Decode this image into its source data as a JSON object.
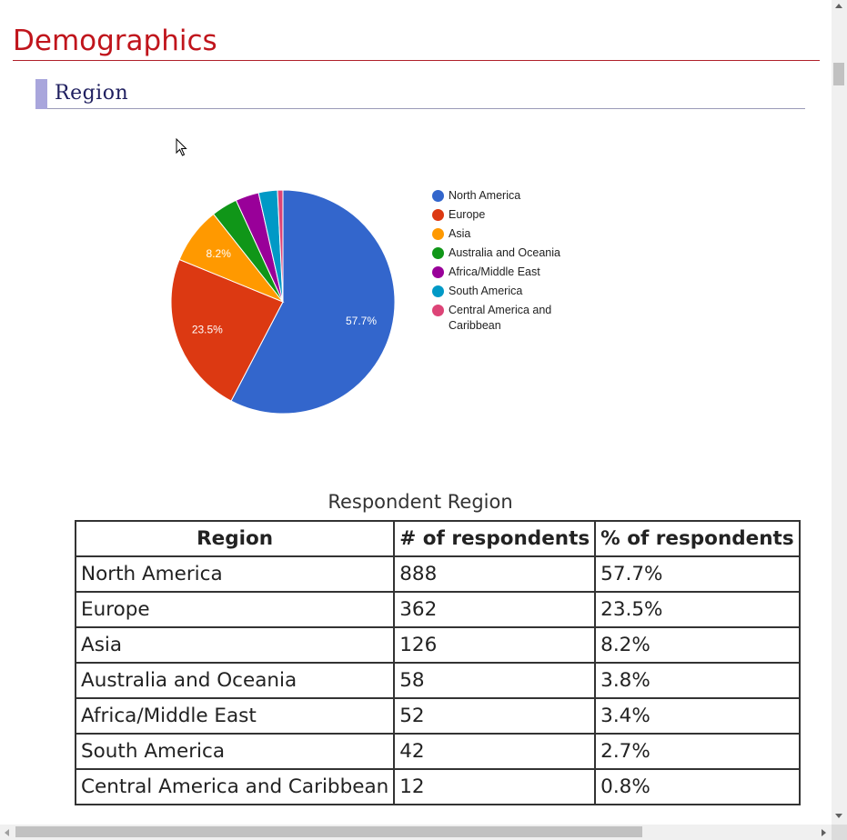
{
  "page": {
    "title": "Demographics",
    "section_title": "Region"
  },
  "chart_data": {
    "type": "pie",
    "title": "",
    "categories": [
      "North America",
      "Europe",
      "Asia",
      "Australia and Oceania",
      "Africa/Middle East",
      "South America",
      "Central America and Caribbean"
    ],
    "values": [
      888,
      362,
      126,
      58,
      52,
      42,
      12
    ],
    "slice_labels": [
      "57.7%",
      "23.5%",
      "8.2%",
      "",
      "",
      "",
      ""
    ],
    "colors": [
      "#3366cc",
      "#dc3912",
      "#ff9900",
      "#109618",
      "#990099",
      "#0099c6",
      "#dd4477"
    ],
    "legend_position": "right"
  },
  "table": {
    "caption": "Respondent Region",
    "headers": [
      "Region",
      "# of respondents",
      "% of respondents"
    ],
    "rows": [
      [
        "North America",
        "888",
        "57.7%"
      ],
      [
        "Europe",
        "362",
        "23.5%"
      ],
      [
        "Asia",
        "126",
        "8.2%"
      ],
      [
        "Australia and Oceania",
        "58",
        "3.8%"
      ],
      [
        "Africa/Middle East",
        "52",
        "3.4%"
      ],
      [
        "South America",
        "42",
        "2.7%"
      ],
      [
        "Central America and Caribbean",
        "12",
        "0.8%"
      ]
    ]
  }
}
